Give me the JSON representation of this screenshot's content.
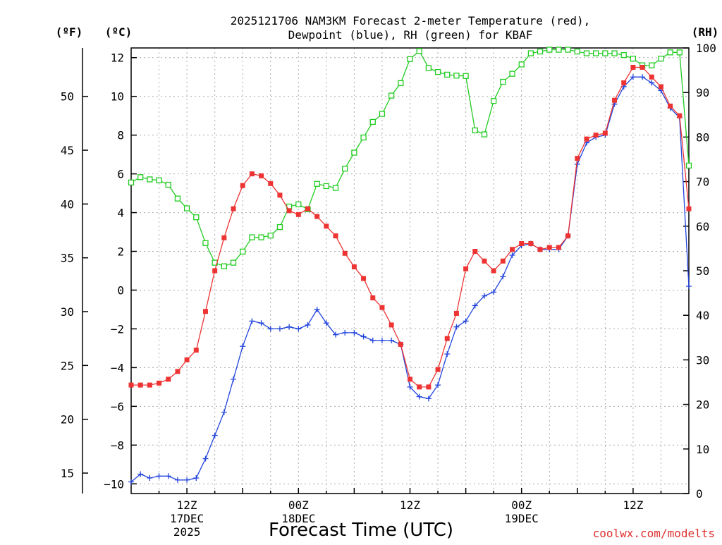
{
  "chart_data": {
    "type": "line",
    "title_line1": "2025121706 NAM3KM Forecast 2-meter Temperature (red),",
    "title_line2": "Dewpoint (blue), RH (green) for KBAF",
    "xlabel": "Forecast Time (UTC)",
    "left_unit_f": "(ºF)",
    "left_unit_c": "(ºC)",
    "right_unit": "(RH)",
    "credit": "coolwx.com/modelts",
    "colors": {
      "temperature": "#ee3333",
      "dewpoint": "#2244dd",
      "rh": "#22cc22",
      "grid": "#aaaaaa",
      "credit": "#e03030"
    },
    "x_range_hours": [
      0,
      60
    ],
    "ylim_c": [
      -10.5,
      12.5
    ],
    "ylim_rh": [
      0,
      100
    ],
    "celsius_ticks": [
      "12",
      "10",
      "8",
      "6",
      "4",
      "2",
      "0",
      "−2",
      "−4",
      "−6",
      "−8",
      "−10"
    ],
    "fahrenheit_ticks": [
      "50",
      "45",
      "40",
      "35",
      "30",
      "25",
      "20",
      "15"
    ],
    "rh_ticks": [
      "100",
      "90",
      "80",
      "70",
      "60",
      "50",
      "40",
      "30",
      "20",
      "10",
      "0"
    ],
    "x_ticks": [
      {
        "hour": 6,
        "line1": "12Z",
        "line2": "17DEC",
        "line3": "2025"
      },
      {
        "hour": 18,
        "line1": "00Z",
        "line2": "18DEC",
        "line3": ""
      },
      {
        "hour": 30,
        "line1": "12Z",
        "line2": "",
        "line3": ""
      },
      {
        "hour": 42,
        "line1": "00Z",
        "line2": "19DEC",
        "line3": ""
      },
      {
        "hour": 54,
        "line1": "12Z",
        "line2": "",
        "line3": ""
      }
    ],
    "series": [
      {
        "name": "Temperature (C)",
        "axis": "celsius",
        "marker": "filled-square",
        "values": [
          -4.9,
          -4.9,
          -4.9,
          -4.8,
          -4.6,
          -4.2,
          -3.6,
          -3.1,
          -1.1,
          1.0,
          2.7,
          4.2,
          5.4,
          6.0,
          5.9,
          5.5,
          4.9,
          4.1,
          3.9,
          4.2,
          3.8,
          3.3,
          2.8,
          1.9,
          1.2,
          0.6,
          -0.4,
          -0.9,
          -1.8,
          -2.8,
          -4.6,
          -5.0,
          -5.0,
          -4.1,
          -2.5,
          -1.2,
          1.1,
          2.0,
          1.5,
          1.0,
          1.5,
          2.1,
          2.4,
          2.4,
          2.1,
          2.2,
          2.2,
          2.8,
          6.8,
          7.8,
          8.0,
          8.1,
          9.8,
          10.7,
          11.5,
          11.5,
          11.0,
          10.5,
          9.5,
          9.0,
          4.2
        ]
      },
      {
        "name": "Dewpoint (C)",
        "axis": "celsius",
        "marker": "plus",
        "values": [
          -9.9,
          -9.5,
          -9.7,
          -9.6,
          -9.6,
          -9.8,
          -9.8,
          -9.7,
          -8.7,
          -7.5,
          -6.3,
          -4.6,
          -2.9,
          -1.6,
          -1.7,
          -2.0,
          -2.0,
          -1.9,
          -2.0,
          -1.8,
          -1.0,
          -1.7,
          -2.3,
          -2.2,
          -2.2,
          -2.4,
          -2.6,
          -2.6,
          -2.6,
          -2.8,
          -5.0,
          -5.5,
          -5.6,
          -4.9,
          -3.3,
          -1.9,
          -1.6,
          -0.8,
          -0.3,
          -0.1,
          0.7,
          1.8,
          2.3,
          2.4,
          2.1,
          2.1,
          2.1,
          2.8,
          6.5,
          7.6,
          7.9,
          8.0,
          9.6,
          10.5,
          11.0,
          11.0,
          10.7,
          10.3,
          9.4,
          8.9,
          0.2
        ]
      },
      {
        "name": "RH (%)",
        "axis": "rh",
        "marker": "open-square",
        "values": [
          69.8,
          71.0,
          70.5,
          70.3,
          69.3,
          66.2,
          64.0,
          62.0,
          56.2,
          51.8,
          51.0,
          51.8,
          54.3,
          57.5,
          57.5,
          57.9,
          59.8,
          64.4,
          64.9,
          63.8,
          69.5,
          69.0,
          68.6,
          72.9,
          76.5,
          79.9,
          83.4,
          85.2,
          89.3,
          92.1,
          97.5,
          99.3,
          95.5,
          94.6,
          94.0,
          93.8,
          93.7,
          81.5,
          80.6,
          88.1,
          92.4,
          94.2,
          96.3,
          98.8,
          99.2,
          99.6,
          99.6,
          99.6,
          99.2,
          98.8,
          98.8,
          98.8,
          98.8,
          98.4,
          97.6,
          96.1,
          96.1,
          97.6,
          99.0,
          99.0,
          73.6
        ]
      }
    ]
  }
}
